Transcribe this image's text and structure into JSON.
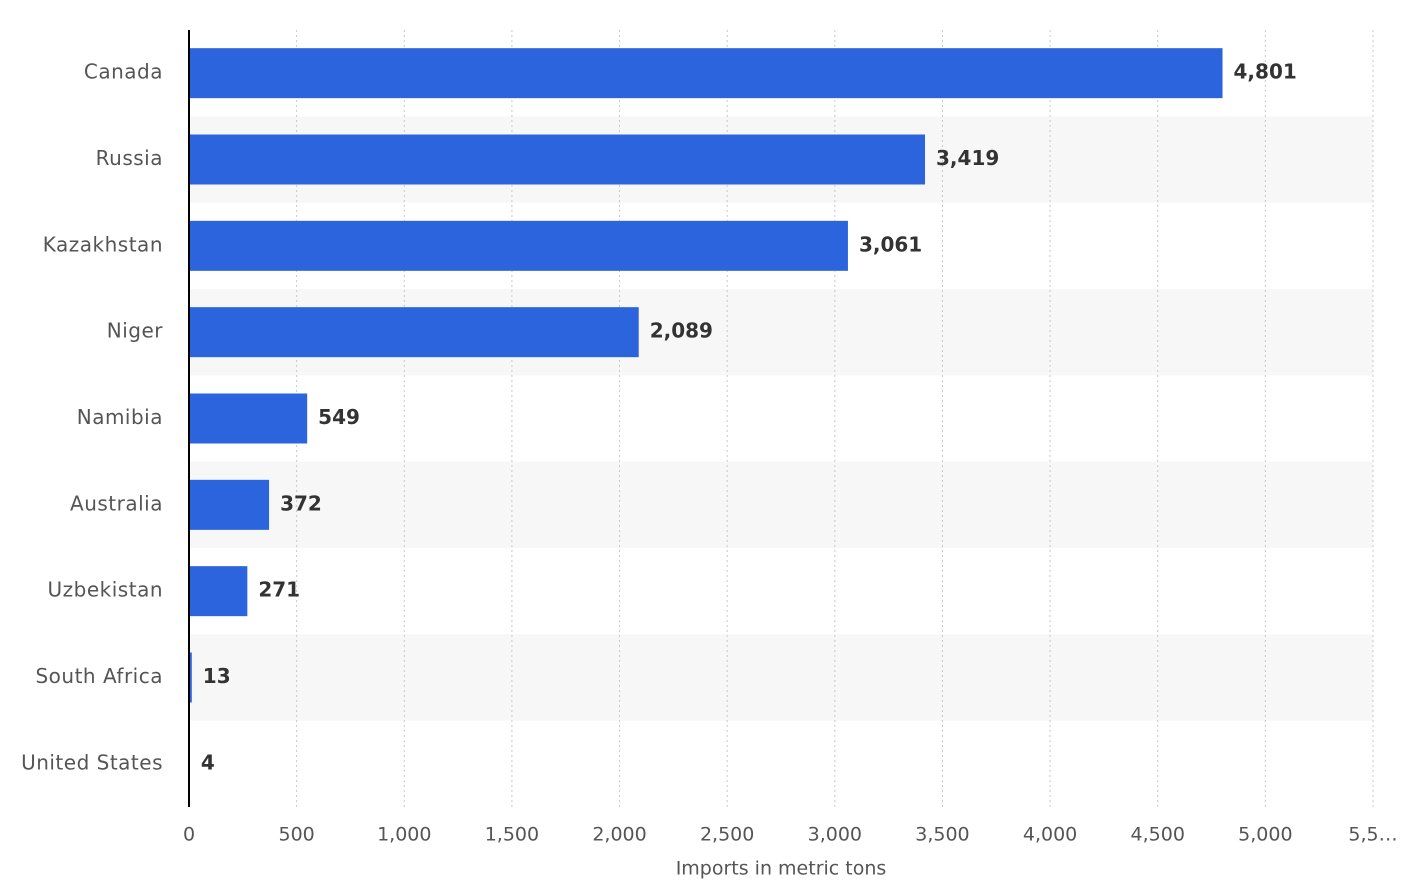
{
  "chart_data": {
    "type": "bar",
    "orientation": "horizontal",
    "categories": [
      "Canada",
      "Russia",
      "Kazakhstan",
      "Niger",
      "Namibia",
      "Australia",
      "Uzbekistan",
      "South Africa",
      "United States"
    ],
    "values": [
      4801,
      3419,
      3061,
      2089,
      549,
      372,
      271,
      13,
      4
    ],
    "value_labels": [
      "4,801",
      "3,419",
      "3,061",
      "2,089",
      "549",
      "372",
      "271",
      "13",
      "4"
    ],
    "color": "#2b64dd",
    "xlabel": "Imports in metric tons",
    "xlim": [
      0,
      5500
    ],
    "xticks": [
      0,
      500,
      {
        "value": 1000,
        "label": "1,000"
      },
      {
        "value": 1500,
        "label": "1,500"
      },
      {
        "value": 2000,
        "label": "2,000"
      },
      {
        "value": 2500,
        "label": "2,500"
      },
      {
        "value": 3000,
        "label": "3,000"
      },
      {
        "value": 3500,
        "label": "3,500"
      },
      {
        "value": 4000,
        "label": "4,000"
      },
      {
        "value": 4500,
        "label": "4,500"
      },
      {
        "value": 5000,
        "label": "5,000"
      },
      {
        "value": 5500,
        "label": "5,5…"
      }
    ],
    "grid": true
  }
}
